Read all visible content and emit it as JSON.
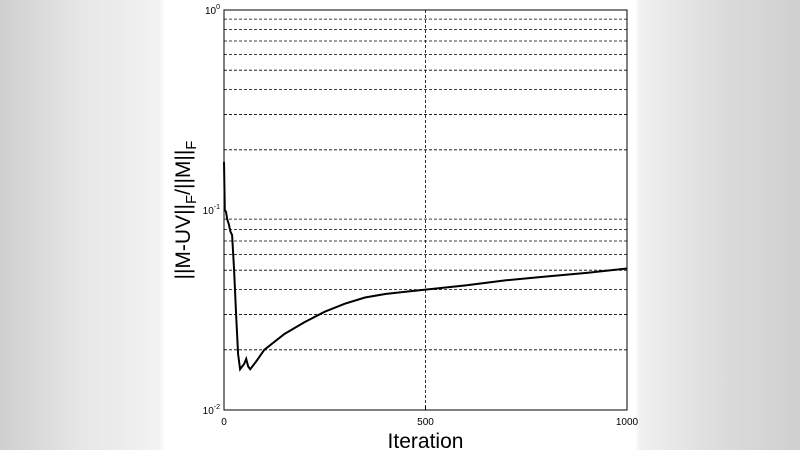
{
  "chart_data": {
    "type": "line",
    "xlabel": "Iteration",
    "ylabel": "||M-UV||_F/||M||_F",
    "xlim": [
      0,
      1000
    ],
    "ylim": [
      0.01,
      1
    ],
    "yscale": "log",
    "xticks": [
      "0",
      "500",
      "1000"
    ],
    "yticks": [
      "10^-2",
      "10^-1",
      "10^0"
    ],
    "grid": "dashed",
    "x": [
      0,
      2,
      5,
      8,
      12,
      16,
      20,
      25,
      30,
      35,
      40,
      45,
      50,
      55,
      60,
      65,
      80,
      100,
      150,
      200,
      250,
      300,
      350,
      400,
      450,
      500,
      600,
      700,
      800,
      900,
      1000
    ],
    "y": [
      0.174,
      0.1,
      0.098,
      0.09,
      0.085,
      0.078,
      0.075,
      0.05,
      0.03,
      0.019,
      0.016,
      0.0165,
      0.017,
      0.018,
      0.0165,
      0.016,
      0.0175,
      0.02,
      0.024,
      0.0275,
      0.031,
      0.034,
      0.0365,
      0.038,
      0.039,
      0.04,
      0.042,
      0.0445,
      0.0465,
      0.0485,
      0.051
    ]
  }
}
